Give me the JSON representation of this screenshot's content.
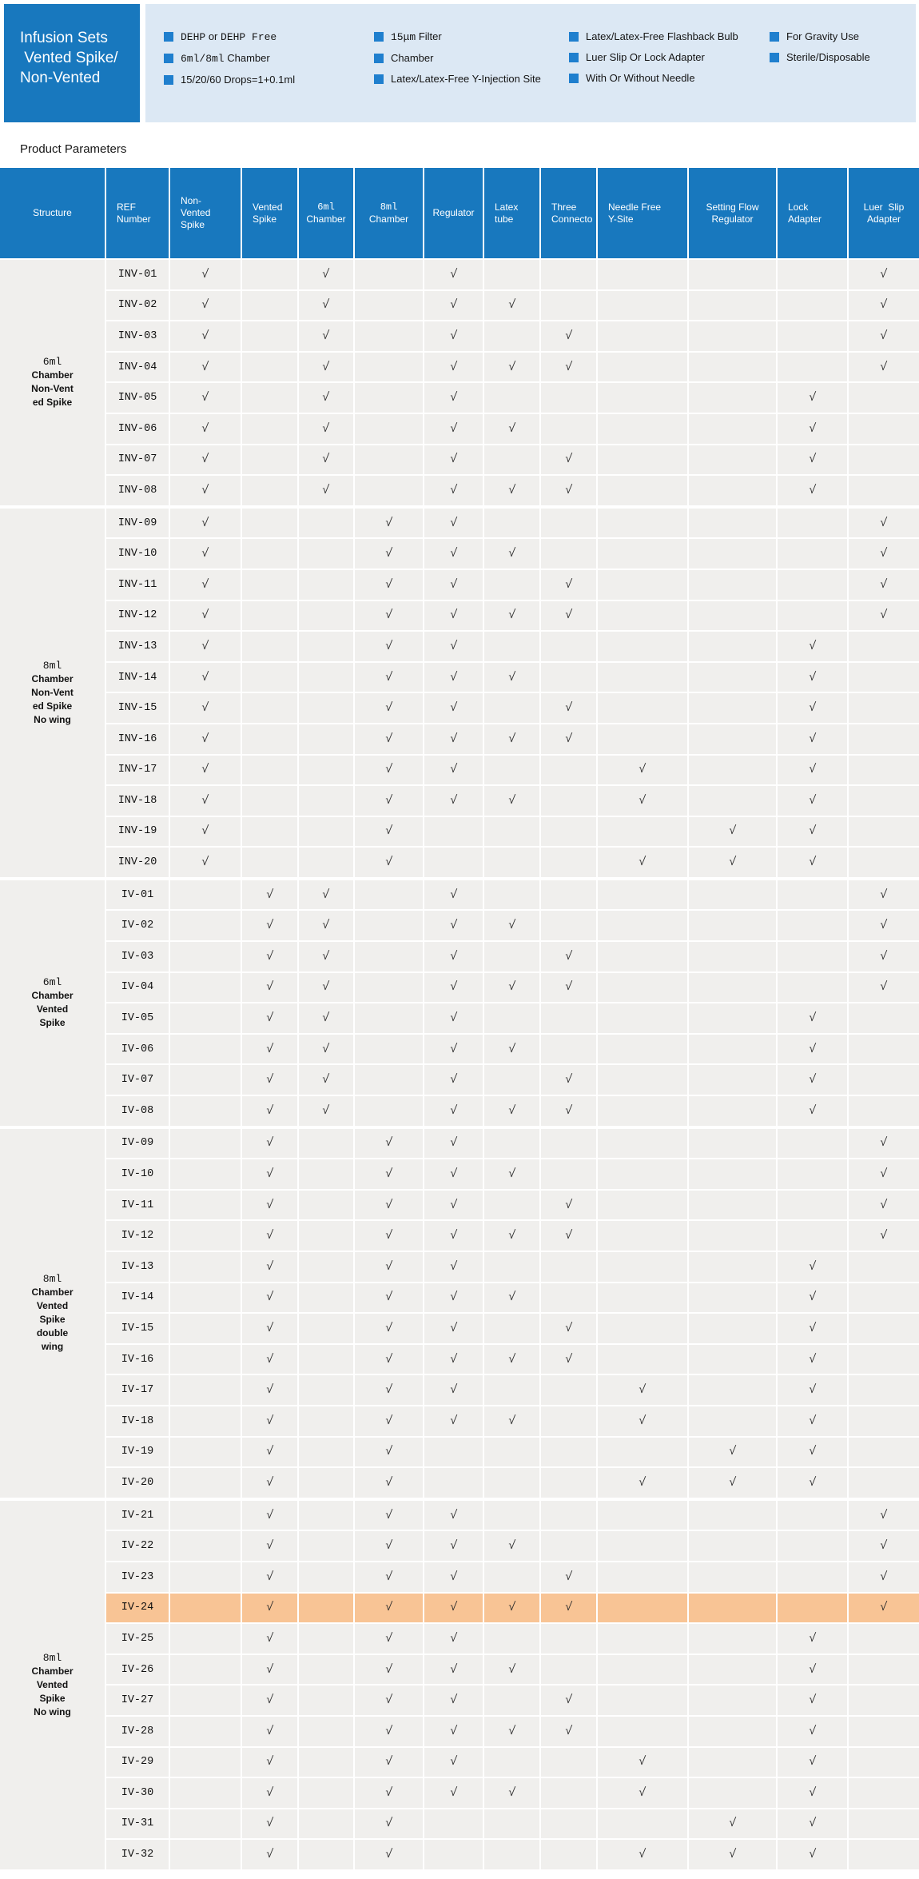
{
  "banner": {
    "title_lines": [
      "Infusion Sets",
      " Vented Spike/",
      "Non-Vented"
    ],
    "feature_columns": [
      {
        "items": [
          {
            "segments": [
              {
                "text": "DEHP",
                "mono": true
              },
              {
                "text": " or ",
                "mono": false
              },
              {
                "text": "DEHP Free",
                "mono": true
              }
            ]
          },
          {
            "segments": [
              {
                "text": "6ml/8ml",
                "mono": true
              },
              {
                "text": " Chamber",
                "mono": false
              }
            ]
          },
          {
            "segments": [
              {
                "text": "15/20/60 Drops=1+0.1ml",
                "mono": false
              }
            ]
          }
        ]
      },
      {
        "items": [
          {
            "segments": [
              {
                "text": "15μm",
                "mono": true
              },
              {
                "text": " Filter",
                "mono": false
              }
            ]
          },
          {
            "segments": [
              {
                "text": "Chamber",
                "mono": false
              }
            ]
          },
          {
            "segments": [
              {
                "text": "Latex/Latex-Free Y-Injection Site",
                "mono": false
              }
            ]
          }
        ]
      },
      {
        "items": [
          {
            "segments": [
              {
                "text": "Latex/Latex-Free Flashback Bulb",
                "mono": false
              }
            ]
          },
          {
            "segments": [
              {
                "text": "Luer Slip Or Lock Adapter",
                "mono": false
              }
            ]
          },
          {
            "segments": [
              {
                "text": "With Or Without Needle",
                "mono": false
              }
            ]
          }
        ]
      },
      {
        "items": [
          {
            "segments": [
              {
                "text": "For Gravity Use",
                "mono": false
              }
            ]
          },
          {
            "segments": [
              {
                "text": "Sterile/Disposable",
                "mono": false
              }
            ]
          }
        ]
      }
    ]
  },
  "section_title": "Product Parameters",
  "colors": {
    "banner_blue": "#1878BE",
    "band_blue": "#DCE8F4",
    "bullet_blue": "#1F7FCE",
    "row_bg": "#F0EFED",
    "highlight_orange": "#F8C495",
    "check_color": "#2B2B2B"
  },
  "table": {
    "check_glyph": "√",
    "highlight_ref": "IV-24",
    "columns": [
      {
        "key": "structure",
        "lines": [
          "Structure"
        ],
        "align": "center"
      },
      {
        "key": "ref",
        "lines": [
          "REF",
          "Number"
        ],
        "align": "left"
      },
      {
        "key": "nvs",
        "lines": [
          "Non-",
          "Vented",
          "Spike"
        ],
        "align": "left"
      },
      {
        "key": "vs",
        "lines": [
          "Vented",
          "Spike"
        ],
        "align": "left"
      },
      {
        "key": "c6",
        "lines": [
          "6ml",
          "Chamber"
        ],
        "align": "center"
      },
      {
        "key": "c8",
        "lines": [
          "8ml",
          "Chamber"
        ],
        "align": "center"
      },
      {
        "key": "reg",
        "lines": [
          "Regulator"
        ],
        "align": "center"
      },
      {
        "key": "latex",
        "lines": [
          "Latex",
          "tube"
        ],
        "align": "left"
      },
      {
        "key": "three",
        "lines": [
          "Three",
          "Connecto"
        ],
        "align": "left"
      },
      {
        "key": "nfy",
        "lines": [
          "Needle Free",
          "Y-Site"
        ],
        "align": "left"
      },
      {
        "key": "sfr",
        "lines": [
          "Setting Flow",
          "Regulator"
        ],
        "align": "center"
      },
      {
        "key": "lock",
        "lines": [
          "Lock",
          "Adapter"
        ],
        "align": "left"
      },
      {
        "key": "luer",
        "lines": [
          "Luer  Slip",
          "Adapter"
        ],
        "align": "center"
      }
    ],
    "sections": [
      {
        "structure_lines": [
          "6ml",
          "Chamber",
          "Non-Vent",
          "ed Spike"
        ],
        "rows": [
          {
            "ref": "INV-01",
            "checks": [
              "nvs",
              "c6",
              "reg",
              "luer"
            ]
          },
          {
            "ref": "INV-02",
            "checks": [
              "nvs",
              "c6",
              "reg",
              "latex",
              "luer"
            ]
          },
          {
            "ref": "INV-03",
            "checks": [
              "nvs",
              "c6",
              "reg",
              "three",
              "luer"
            ]
          },
          {
            "ref": "INV-04",
            "checks": [
              "nvs",
              "c6",
              "reg",
              "latex",
              "three",
              "luer"
            ]
          },
          {
            "ref": "INV-05",
            "checks": [
              "nvs",
              "c6",
              "reg",
              "lock"
            ]
          },
          {
            "ref": "INV-06",
            "checks": [
              "nvs",
              "c6",
              "reg",
              "latex",
              "lock"
            ]
          },
          {
            "ref": "INV-07",
            "checks": [
              "nvs",
              "c6",
              "reg",
              "three",
              "lock"
            ]
          },
          {
            "ref": "INV-08",
            "checks": [
              "nvs",
              "c6",
              "reg",
              "latex",
              "three",
              "lock"
            ]
          }
        ]
      },
      {
        "structure_lines": [
          "8ml",
          "Chamber",
          "Non-Vent",
          "ed Spike",
          "No wing"
        ],
        "rows": [
          {
            "ref": "INV-09",
            "checks": [
              "nvs",
              "c8",
              "reg",
              "luer"
            ]
          },
          {
            "ref": "INV-10",
            "checks": [
              "nvs",
              "c8",
              "reg",
              "latex",
              "luer"
            ]
          },
          {
            "ref": "INV-11",
            "checks": [
              "nvs",
              "c8",
              "reg",
              "three",
              "luer"
            ]
          },
          {
            "ref": "INV-12",
            "checks": [
              "nvs",
              "c8",
              "reg",
              "latex",
              "three",
              "luer"
            ]
          },
          {
            "ref": "INV-13",
            "checks": [
              "nvs",
              "c8",
              "reg",
              "lock"
            ]
          },
          {
            "ref": "INV-14",
            "checks": [
              "nvs",
              "c8",
              "reg",
              "latex",
              "lock"
            ]
          },
          {
            "ref": "INV-15",
            "checks": [
              "nvs",
              "c8",
              "reg",
              "three",
              "lock"
            ]
          },
          {
            "ref": "INV-16",
            "checks": [
              "nvs",
              "c8",
              "reg",
              "latex",
              "three",
              "lock"
            ]
          },
          {
            "ref": "INV-17",
            "checks": [
              "nvs",
              "c8",
              "reg",
              "nfy",
              "lock"
            ]
          },
          {
            "ref": "INV-18",
            "checks": [
              "nvs",
              "c8",
              "reg",
              "latex",
              "nfy",
              "lock"
            ]
          },
          {
            "ref": "INV-19",
            "checks": [
              "nvs",
              "c8",
              "sfr",
              "lock"
            ]
          },
          {
            "ref": "INV-20",
            "checks": [
              "nvs",
              "c8",
              "nfy",
              "sfr",
              "lock"
            ]
          }
        ]
      },
      {
        "structure_lines": [
          "6ml",
          "Chamber",
          "Vented",
          "Spike"
        ],
        "rows": [
          {
            "ref": "IV-01",
            "checks": [
              "vs",
              "c6",
              "reg",
              "luer"
            ]
          },
          {
            "ref": "IV-02",
            "checks": [
              "vs",
              "c6",
              "reg",
              "latex",
              "luer"
            ]
          },
          {
            "ref": "IV-03",
            "checks": [
              "vs",
              "c6",
              "reg",
              "three",
              "luer"
            ]
          },
          {
            "ref": "IV-04",
            "checks": [
              "vs",
              "c6",
              "reg",
              "latex",
              "three",
              "luer"
            ]
          },
          {
            "ref": "IV-05",
            "checks": [
              "vs",
              "c6",
              "reg",
              "lock"
            ]
          },
          {
            "ref": "IV-06",
            "checks": [
              "vs",
              "c6",
              "reg",
              "latex",
              "lock"
            ]
          },
          {
            "ref": "IV-07",
            "checks": [
              "vs",
              "c6",
              "reg",
              "three",
              "lock"
            ]
          },
          {
            "ref": "IV-08",
            "checks": [
              "vs",
              "c6",
              "reg",
              "latex",
              "three",
              "lock"
            ]
          }
        ]
      },
      {
        "structure_lines": [
          "8ml",
          "Chamber",
          "Vented",
          "Spike",
          "double",
          "wing"
        ],
        "rows": [
          {
            "ref": "IV-09",
            "checks": [
              "vs",
              "c8",
              "reg",
              "luer"
            ]
          },
          {
            "ref": "IV-10",
            "checks": [
              "vs",
              "c8",
              "reg",
              "latex",
              "luer"
            ]
          },
          {
            "ref": "IV-11",
            "checks": [
              "vs",
              "c8",
              "reg",
              "three",
              "luer"
            ]
          },
          {
            "ref": "IV-12",
            "checks": [
              "vs",
              "c8",
              "reg",
              "latex",
              "three",
              "luer"
            ]
          },
          {
            "ref": "IV-13",
            "checks": [
              "vs",
              "c8",
              "reg",
              "lock"
            ]
          },
          {
            "ref": "IV-14",
            "checks": [
              "vs",
              "c8",
              "reg",
              "latex",
              "lock"
            ]
          },
          {
            "ref": "IV-15",
            "checks": [
              "vs",
              "c8",
              "reg",
              "three",
              "lock"
            ]
          },
          {
            "ref": "IV-16",
            "checks": [
              "vs",
              "c8",
              "reg",
              "latex",
              "three",
              "lock"
            ]
          },
          {
            "ref": "IV-17",
            "checks": [
              "vs",
              "c8",
              "reg",
              "nfy",
              "lock"
            ]
          },
          {
            "ref": "IV-18",
            "checks": [
              "vs",
              "c8",
              "reg",
              "latex",
              "nfy",
              "lock"
            ]
          },
          {
            "ref": "IV-19",
            "checks": [
              "vs",
              "c8",
              "sfr",
              "lock"
            ]
          },
          {
            "ref": "IV-20",
            "checks": [
              "vs",
              "c8",
              "nfy",
              "sfr",
              "lock"
            ]
          }
        ]
      },
      {
        "structure_lines": [
          "8ml",
          "Chamber",
          "Vented",
          "Spike",
          "No wing"
        ],
        "rows": [
          {
            "ref": "IV-21",
            "checks": [
              "vs",
              "c8",
              "reg",
              "luer"
            ]
          },
          {
            "ref": "IV-22",
            "checks": [
              "vs",
              "c8",
              "reg",
              "latex",
              "luer"
            ]
          },
          {
            "ref": "IV-23",
            "checks": [
              "vs",
              "c8",
              "reg",
              "three",
              "luer"
            ]
          },
          {
            "ref": "IV-24",
            "checks": [
              "vs",
              "c8",
              "reg",
              "latex",
              "three",
              "luer"
            ]
          },
          {
            "ref": "IV-25",
            "checks": [
              "vs",
              "c8",
              "reg",
              "lock"
            ]
          },
          {
            "ref": "IV-26",
            "checks": [
              "vs",
              "c8",
              "reg",
              "latex",
              "lock"
            ]
          },
          {
            "ref": "IV-27",
            "checks": [
              "vs",
              "c8",
              "reg",
              "three",
              "lock"
            ]
          },
          {
            "ref": "IV-28",
            "checks": [
              "vs",
              "c8",
              "reg",
              "latex",
              "three",
              "lock"
            ]
          },
          {
            "ref": "IV-29",
            "checks": [
              "vs",
              "c8",
              "reg",
              "nfy",
              "lock"
            ]
          },
          {
            "ref": "IV-30",
            "checks": [
              "vs",
              "c8",
              "reg",
              "latex",
              "nfy",
              "lock"
            ]
          },
          {
            "ref": "IV-31",
            "checks": [
              "vs",
              "c8",
              "sfr",
              "lock"
            ]
          },
          {
            "ref": "IV-32",
            "checks": [
              "vs",
              "c8",
              "nfy",
              "sfr",
              "lock"
            ]
          }
        ]
      }
    ]
  }
}
